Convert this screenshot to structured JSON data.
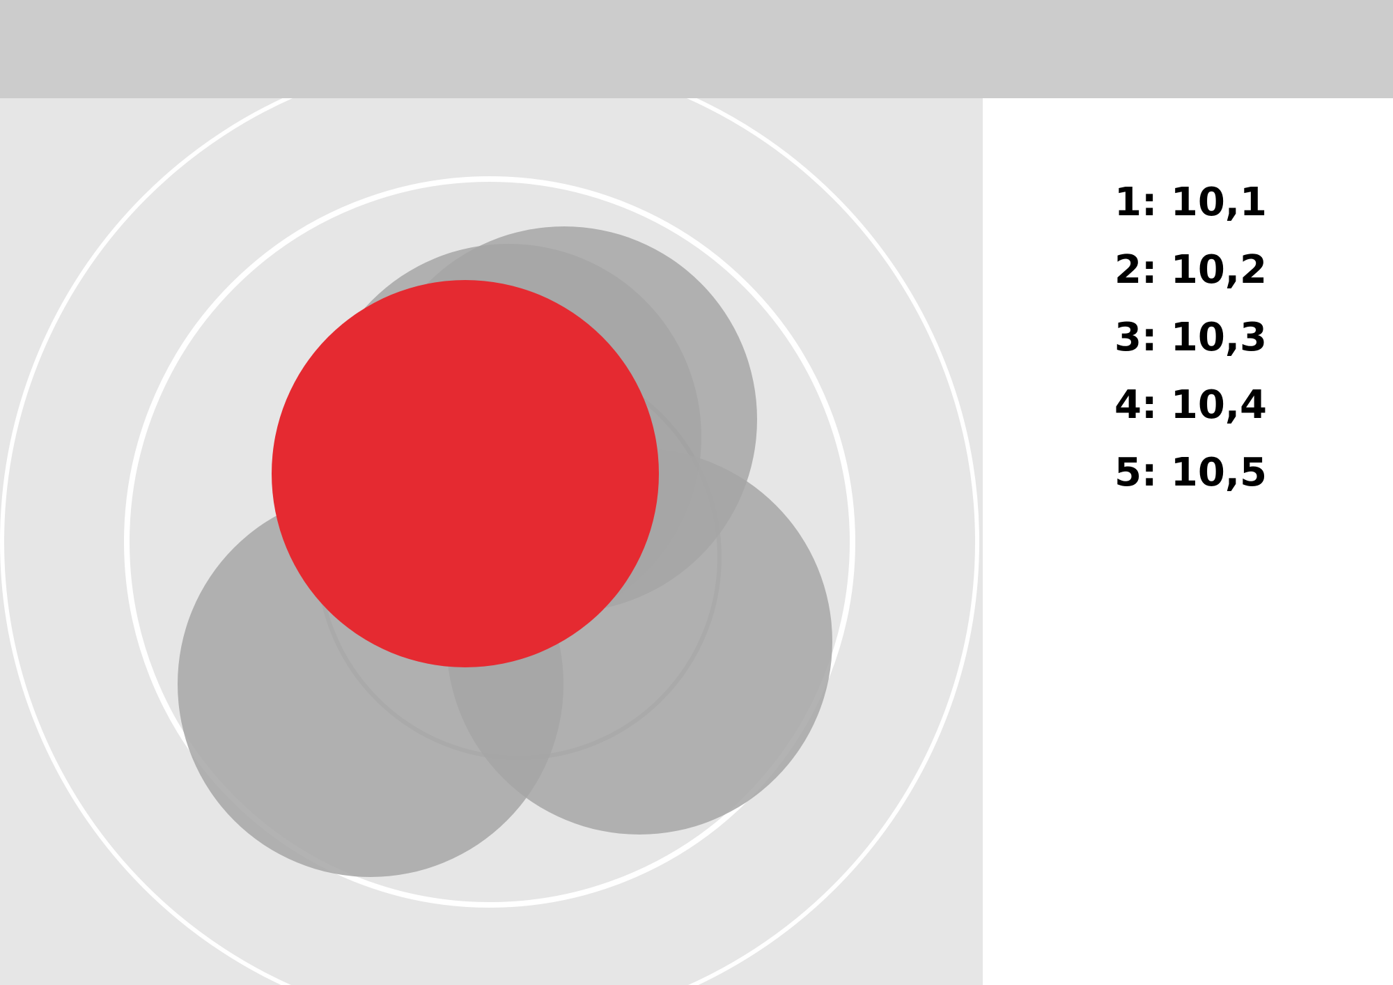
{
  "colors": {
    "top_bar": "#cccccc",
    "canvas_background": "#e6e6e6",
    "ring_stroke": "#ffffff",
    "gray_circle": "#a6a6a6",
    "highlight_circle": "#e52a31",
    "page_background": "#ffffff"
  },
  "legend": {
    "items": [
      {
        "label": "1: 10,1"
      },
      {
        "label": "2: 10,2"
      },
      {
        "label": "3: 10,3"
      },
      {
        "label": "4: 10,4"
      },
      {
        "label": "5: 10,5"
      }
    ]
  }
}
